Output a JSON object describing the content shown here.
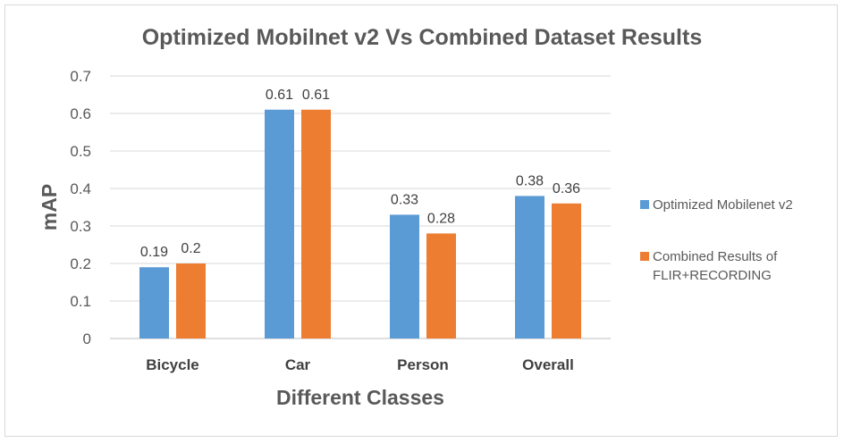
{
  "chart_data": {
    "type": "bar",
    "title": "Optimized Mobilnet v2 Vs Combined Dataset Results",
    "xlabel": "Different Classes",
    "ylabel": "mAP",
    "categories": [
      "Bicycle",
      "Car",
      "Person",
      "Overall"
    ],
    "series": [
      {
        "name": "Optimized Mobilenet v2",
        "values": [
          0.19,
          0.61,
          0.33,
          0.38
        ],
        "labels": [
          "0.19",
          "0.61",
          "0.33",
          "0.38"
        ],
        "color": "#5b9bd5"
      },
      {
        "name": "Combined Results of FLIR+RECORDING",
        "name_lines": [
          "Combined Results of",
          "FLIR+RECORDING"
        ],
        "values": [
          0.2,
          0.61,
          0.28,
          0.36
        ],
        "labels": [
          "0.2",
          "0.61",
          "0.28",
          "0.36"
        ],
        "color": "#ed7d31"
      }
    ],
    "ylim": [
      0,
      0.7
    ],
    "yticks": [
      "0",
      "0.1",
      "0.2",
      "0.3",
      "0.4",
      "0.5",
      "0.6",
      "0.7"
    ],
    "ytick_values": [
      0,
      0.1,
      0.2,
      0.3,
      0.4,
      0.5,
      0.6,
      0.7
    ],
    "grid": true,
    "legend_position": "right"
  }
}
